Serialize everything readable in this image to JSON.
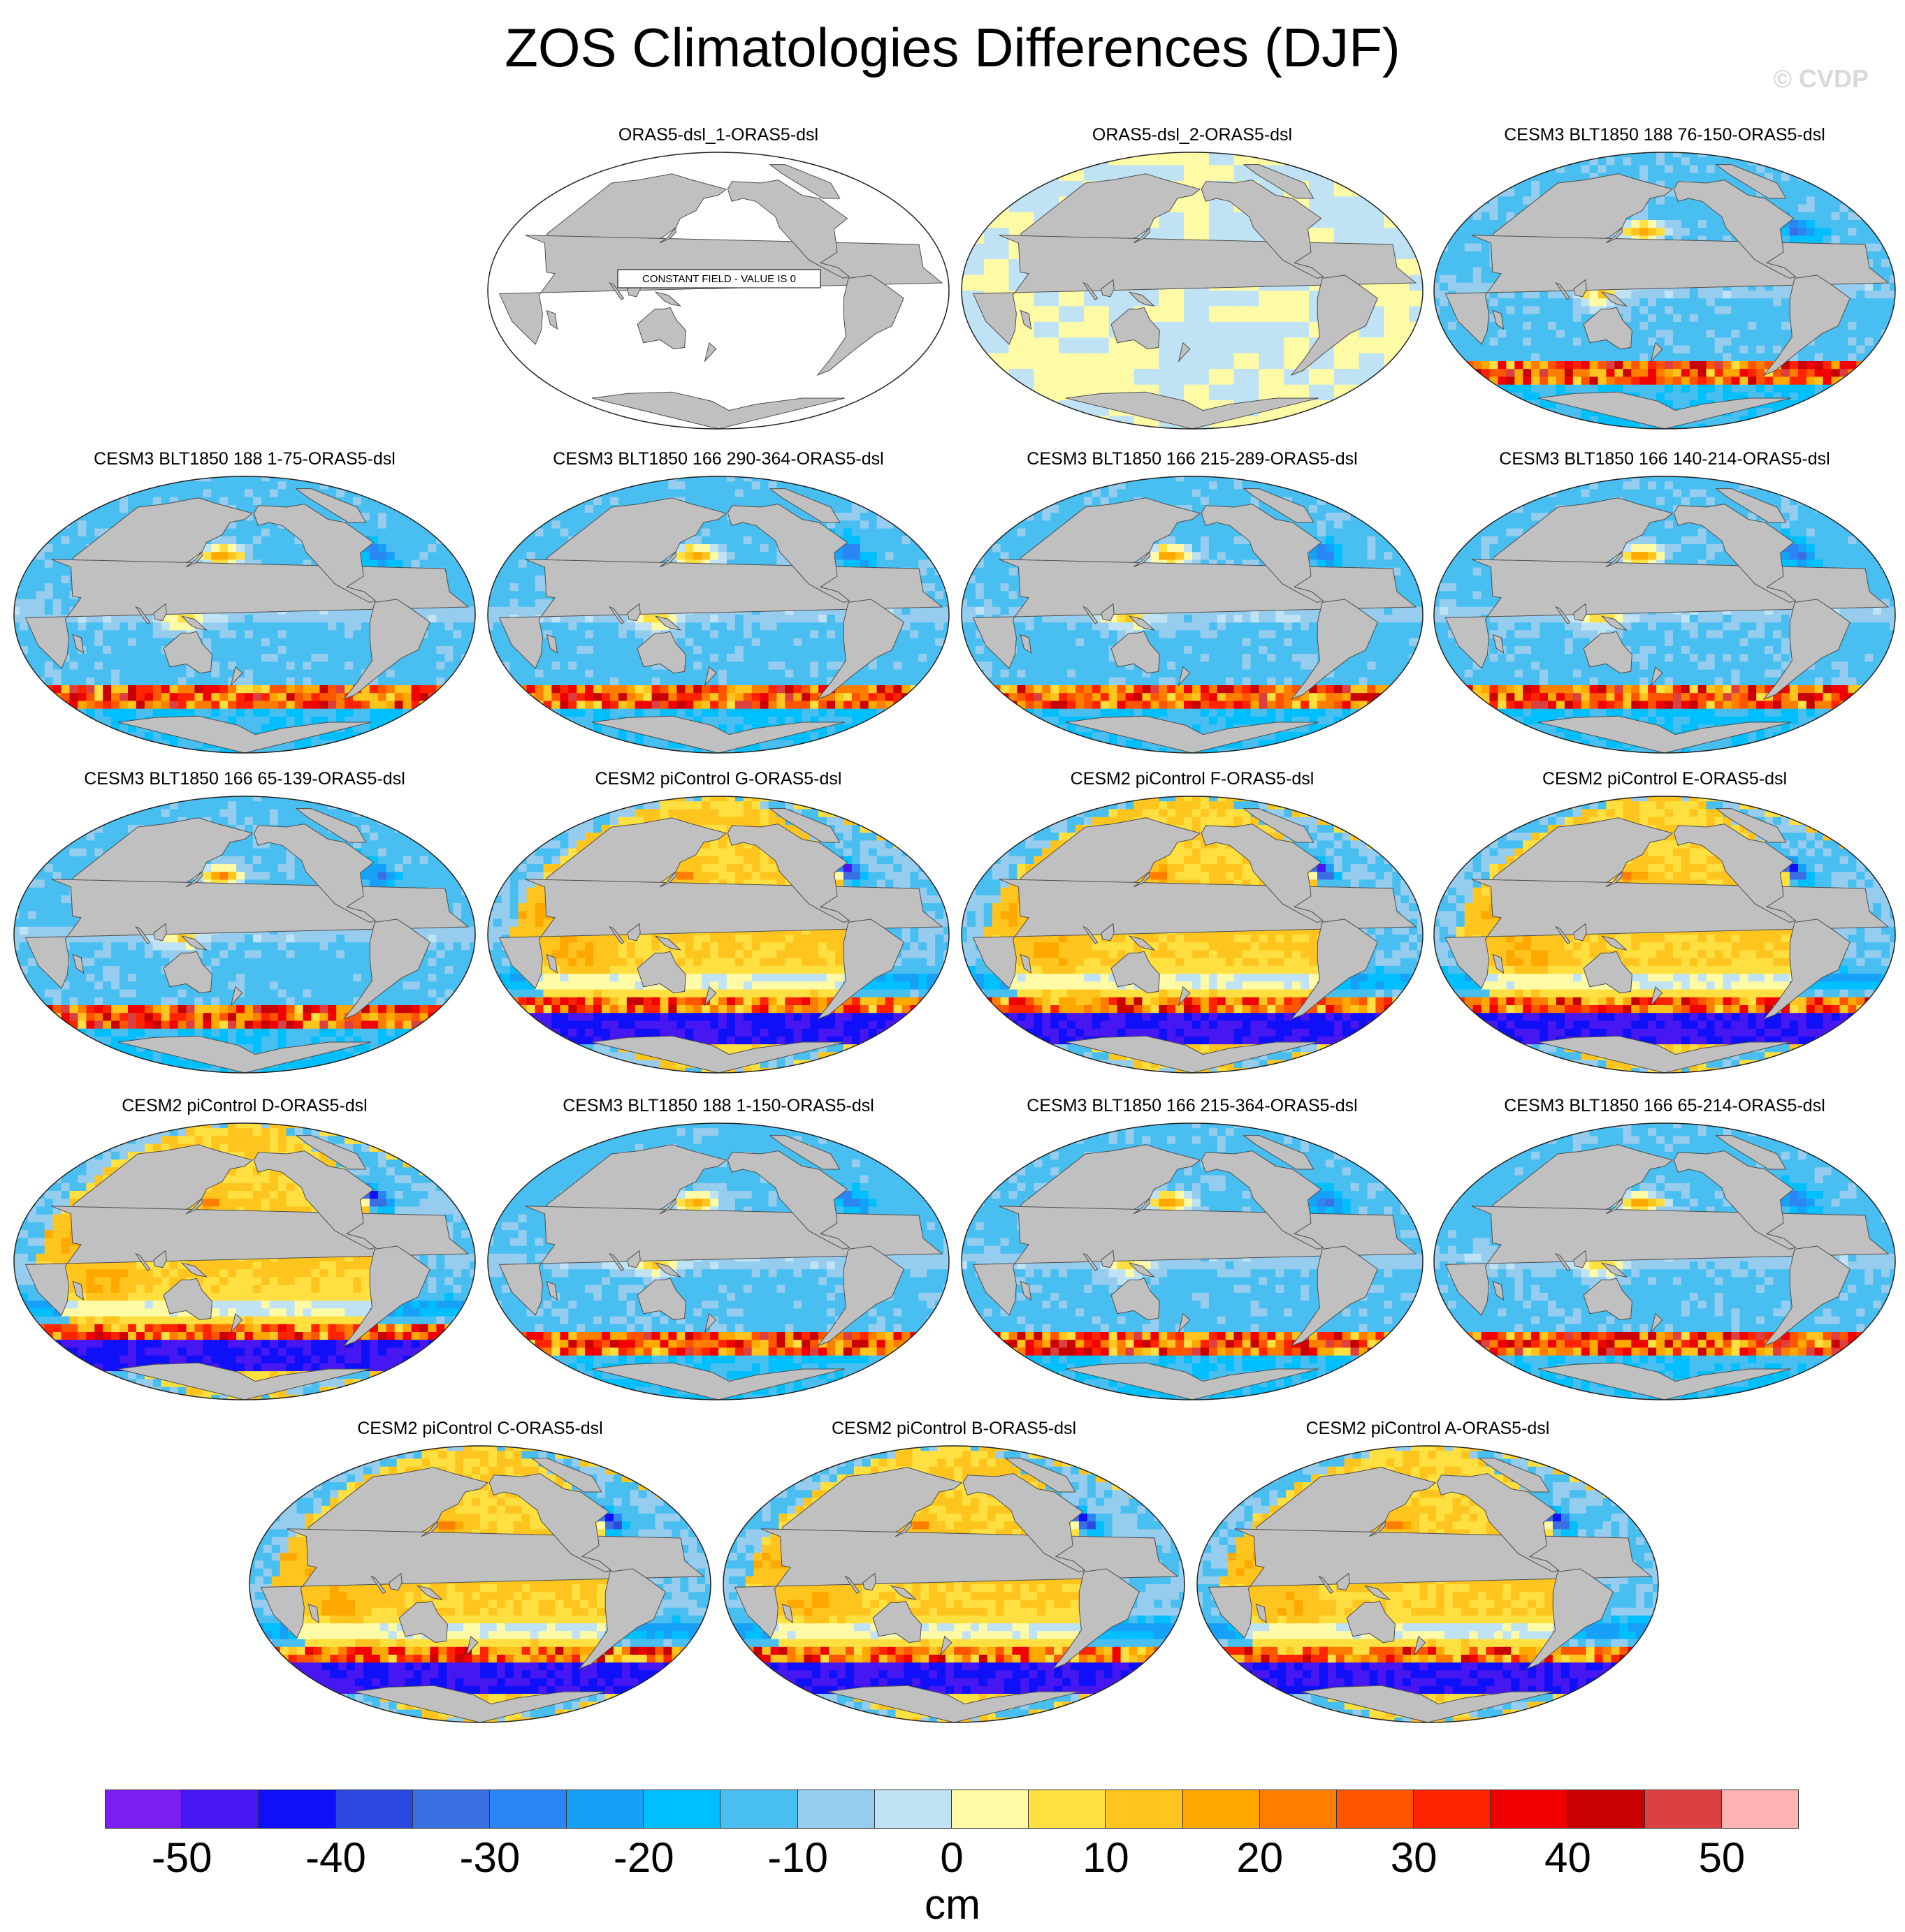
{
  "title": "ZOS Climatologies Differences (DJF)",
  "watermark": "© CVDP",
  "chart_data": {
    "type": "heatmap",
    "projection": "Robinson (Pacific-centered)",
    "title": "ZOS Climatologies Differences (DJF)",
    "units": "cm",
    "colorbar": {
      "levels": [
        -55,
        -50,
        -45,
        -40,
        -35,
        -30,
        -25,
        -20,
        -15,
        -10,
        -5,
        0,
        5,
        10,
        15,
        20,
        25,
        30,
        35,
        40,
        45,
        50,
        55
      ],
      "tick_labels": [
        "-50",
        "-40",
        "-30",
        "-20",
        "-10",
        "0",
        "10",
        "20",
        "30",
        "40",
        "50"
      ],
      "tick_values": [
        -50,
        -40,
        -30,
        -20,
        -10,
        0,
        10,
        20,
        30,
        40,
        50
      ],
      "colors": [
        "#7b1ff0",
        "#4717f2",
        "#0f10f7",
        "#2b48e0",
        "#3a6fe2",
        "#2b85f2",
        "#17a0f7",
        "#00bfff",
        "#48bff0",
        "#96cdee",
        "#bfe3f5",
        "#fffaa6",
        "#ffe040",
        "#ffc51e",
        "#ffa800",
        "#ff7e00",
        "#ff5400",
        "#ff2400",
        "#f00000",
        "#c80000",
        "#dc4040",
        "#ffb3b3"
      ],
      "unit_label": "cm"
    },
    "panels": [
      {
        "title": "ORAS5-dsl_1-ORAS5-dsl",
        "pattern": "constant",
        "note": "CONSTANT FIELD - VALUE IS  0"
      },
      {
        "title": "ORAS5-dsl_2-ORAS5-dsl",
        "pattern": "near-zero"
      },
      {
        "title": "CESM3 BLT1850 188 76-150-ORAS5-dsl",
        "pattern": "cesm3"
      },
      {
        "title": "CESM3 BLT1850 188 1-75-ORAS5-dsl",
        "pattern": "cesm3"
      },
      {
        "title": "CESM3 BLT1850 166 290-364-ORAS5-dsl",
        "pattern": "cesm3"
      },
      {
        "title": "CESM3 BLT1850 166 215-289-ORAS5-dsl",
        "pattern": "cesm3"
      },
      {
        "title": "CESM3 BLT1850 166 140-214-ORAS5-dsl",
        "pattern": "cesm3"
      },
      {
        "title": "CESM3 BLT1850 166 65-139-ORAS5-dsl",
        "pattern": "cesm3"
      },
      {
        "title": "CESM2 piControl G-ORAS5-dsl",
        "pattern": "cesm2"
      },
      {
        "title": "CESM2 piControl F-ORAS5-dsl",
        "pattern": "cesm2"
      },
      {
        "title": "CESM2 piControl E-ORAS5-dsl",
        "pattern": "cesm2"
      },
      {
        "title": "CESM2 piControl D-ORAS5-dsl",
        "pattern": "cesm2"
      },
      {
        "title": "CESM3 BLT1850 188 1-150-ORAS5-dsl",
        "pattern": "cesm3"
      },
      {
        "title": "CESM3 BLT1850 166 215-364-ORAS5-dsl",
        "pattern": "cesm3"
      },
      {
        "title": "CESM3 BLT1850 166 65-214-ORAS5-dsl",
        "pattern": "cesm3"
      },
      {
        "title": "CESM2 piControl C-ORAS5-dsl",
        "pattern": "cesm2"
      },
      {
        "title": "CESM2 piControl B-ORAS5-dsl",
        "pattern": "cesm2"
      },
      {
        "title": "CESM2 piControl A-ORAS5-dsl",
        "pattern": "cesm2"
      }
    ]
  }
}
